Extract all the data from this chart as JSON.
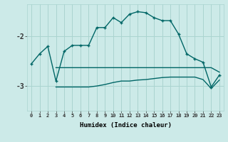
{
  "xlabel": "Humidex (Indice chaleur)",
  "background_color": "#cceae8",
  "line_color": "#006666",
  "grid_color": "#aad4d0",
  "xlim": [
    -0.5,
    23.5
  ],
  "ylim": [
    -3.5,
    -1.35
  ],
  "yticks": [
    -3,
    -2
  ],
  "xticks": [
    0,
    1,
    2,
    3,
    4,
    5,
    6,
    7,
    8,
    9,
    10,
    11,
    12,
    13,
    14,
    15,
    16,
    17,
    18,
    19,
    20,
    21,
    22,
    23
  ],
  "main_x": [
    0,
    1,
    2,
    3,
    4,
    5,
    6,
    7,
    8,
    9,
    10,
    11,
    12,
    13,
    14,
    15,
    16,
    17,
    18,
    19,
    20,
    21,
    22,
    23
  ],
  "main_y": [
    -2.55,
    -2.35,
    -2.2,
    -2.9,
    -2.3,
    -2.18,
    -2.18,
    -2.18,
    -1.82,
    -1.82,
    -1.62,
    -1.72,
    -1.55,
    -1.5,
    -1.52,
    -1.62,
    -1.68,
    -1.68,
    -1.95,
    -2.35,
    -2.45,
    -2.52,
    -3.02,
    -2.78
  ],
  "upper_x": [
    3,
    4,
    5,
    6,
    7,
    8,
    9,
    10,
    11,
    12,
    13,
    14,
    15,
    16,
    17,
    18,
    19,
    20,
    21,
    22,
    23
  ],
  "upper_y": [
    -2.63,
    -2.63,
    -2.63,
    -2.63,
    -2.63,
    -2.63,
    -2.63,
    -2.63,
    -2.63,
    -2.63,
    -2.63,
    -2.63,
    -2.63,
    -2.63,
    -2.63,
    -2.63,
    -2.63,
    -2.63,
    -2.63,
    -2.63,
    -2.72
  ],
  "lower_x": [
    3,
    4,
    5,
    6,
    7,
    8,
    9,
    10,
    11,
    12,
    13,
    14,
    15,
    16,
    17,
    18,
    19,
    20,
    21,
    22,
    23
  ],
  "lower_y": [
    -3.02,
    -3.02,
    -3.02,
    -3.02,
    -3.02,
    -3.0,
    -2.97,
    -2.93,
    -2.9,
    -2.9,
    -2.88,
    -2.87,
    -2.85,
    -2.83,
    -2.82,
    -2.82,
    -2.82,
    -2.82,
    -2.87,
    -3.05,
    -2.88
  ]
}
